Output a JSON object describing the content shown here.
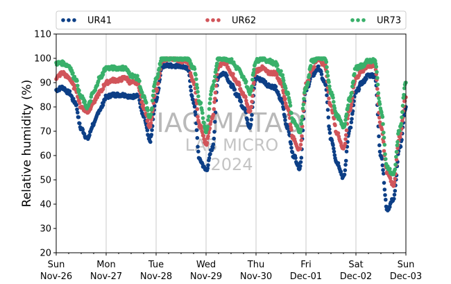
{
  "chart_data": {
    "type": "scatter",
    "ylabel": "Relative humidity (%)",
    "ylim": [
      20,
      110
    ],
    "yticks": [
      20,
      30,
      40,
      50,
      60,
      70,
      80,
      90,
      100,
      110
    ],
    "xlim_days": [
      0,
      7
    ],
    "xticks": [
      {
        "day": "Sun",
        "date": "Nov-26"
      },
      {
        "day": "Mon",
        "date": "Nov-27"
      },
      {
        "day": "Tue",
        "date": "Nov-28"
      },
      {
        "day": "Wed",
        "date": "Nov-29"
      },
      {
        "day": "Thu",
        "date": "Nov-30"
      },
      {
        "day": "Fri",
        "date": "Dec-01"
      },
      {
        "day": "Sat",
        "date": "Dec-02"
      },
      {
        "day": "Sun",
        "date": "Dec-03"
      }
    ],
    "grid": "vertical",
    "legend_position": "top",
    "watermark": [
      "IAG-MATAO",
      "LAB MICRO",
      "2024"
    ],
    "x": [
      "Nov-26 00:00",
      "Nov-26 03:00",
      "Nov-26 06:00",
      "Nov-26 09:00",
      "Nov-26 12:00",
      "Nov-26 15:00",
      "Nov-26 18:00",
      "Nov-26 21:00",
      "Nov-27 00:00",
      "Nov-27 03:00",
      "Nov-27 06:00",
      "Nov-27 09:00",
      "Nov-27 12:00",
      "Nov-27 15:00",
      "Nov-27 18:00",
      "Nov-27 21:00",
      "Nov-28 00:00",
      "Nov-28 03:00",
      "Nov-28 06:00",
      "Nov-28 09:00",
      "Nov-28 12:00",
      "Nov-28 15:00",
      "Nov-28 18:00",
      "Nov-28 21:00",
      "Nov-29 00:00",
      "Nov-29 03:00",
      "Nov-29 06:00",
      "Nov-29 09:00",
      "Nov-29 12:00",
      "Nov-29 15:00",
      "Nov-29 18:00",
      "Nov-29 21:00",
      "Nov-30 00:00",
      "Nov-30 03:00",
      "Nov-30 06:00",
      "Nov-30 09:00",
      "Nov-30 12:00",
      "Nov-30 15:00",
      "Nov-30 18:00",
      "Nov-30 21:00",
      "Dec-01 00:00",
      "Dec-01 03:00",
      "Dec-01 06:00",
      "Dec-01 09:00",
      "Dec-01 12:00",
      "Dec-01 15:00",
      "Dec-01 18:00",
      "Dec-01 21:00",
      "Dec-02 00:00",
      "Dec-02 03:00",
      "Dec-02 06:00",
      "Dec-02 09:00",
      "Dec-02 12:00",
      "Dec-02 15:00",
      "Dec-02 18:00",
      "Dec-02 21:00",
      "Dec-03 00:00"
    ],
    "series": [
      {
        "name": "UR41",
        "color": "#0d3f86",
        "values": [
          87,
          88,
          86,
          82,
          71,
          67,
          73,
          79,
          84,
          85,
          85,
          85,
          84,
          85,
          76,
          66,
          83,
          97,
          97,
          97,
          97,
          96,
          82,
          58,
          54,
          63,
          93,
          94,
          89,
          85,
          80,
          72,
          92,
          91,
          89,
          88,
          83,
          72,
          60,
          55,
          87,
          93,
          96,
          90,
          67,
          57,
          51,
          71,
          86,
          90,
          93,
          93,
          60,
          38,
          42,
          63,
          80
        ]
      },
      {
        "name": "UR62",
        "color": "#d1555a",
        "values": [
          92,
          94,
          92,
          88,
          80,
          78,
          82,
          86,
          90,
          91,
          91,
          92,
          90,
          90,
          80,
          72,
          87,
          99,
          100,
          100,
          99,
          99,
          90,
          72,
          65,
          76,
          97,
          98,
          94,
          90,
          85,
          78,
          95,
          96,
          94,
          94,
          90,
          80,
          67,
          62,
          89,
          96,
          100,
          97,
          80,
          69,
          63,
          79,
          92,
          95,
          97,
          97,
          72,
          53,
          48,
          68,
          84
        ]
      },
      {
        "name": "UR73",
        "color": "#39b06a",
        "values": [
          98,
          98,
          97,
          92,
          84,
          80,
          86,
          92,
          96,
          96,
          96,
          96,
          93,
          92,
          84,
          76,
          92,
          100,
          100,
          100,
          100,
          100,
          96,
          82,
          70,
          88,
          100,
          100,
          99,
          96,
          92,
          86,
          99,
          100,
          99,
          98,
          94,
          86,
          74,
          70,
          88,
          99,
          100,
          100,
          86,
          76,
          72,
          83,
          96,
          97,
          99,
          99,
          79,
          55,
          52,
          71,
          90
        ]
      }
    ]
  }
}
